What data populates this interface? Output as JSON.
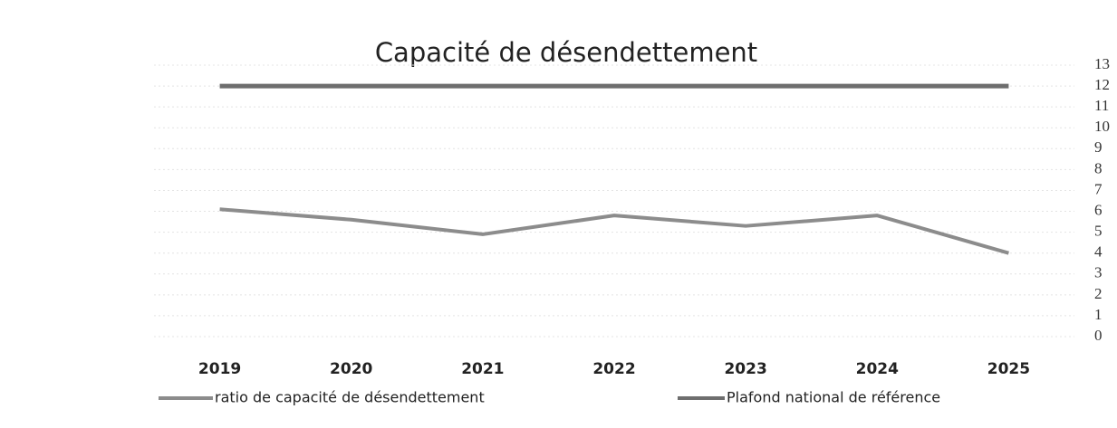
{
  "chart_data": {
    "type": "line",
    "title": "Capacité de désendettement",
    "categories": [
      "2019",
      "2020",
      "2021",
      "2022",
      "2023",
      "2024",
      "2025"
    ],
    "series": [
      {
        "name": "ratio de capacité de désendettement",
        "color": "#8c8c8c",
        "values": [
          6.1,
          5.6,
          4.9,
          5.8,
          5.3,
          5.8,
          4.0
        ]
      },
      {
        "name": "Plafond national de référence",
        "color": "#6e6e6e",
        "values": [
          12,
          12,
          12,
          12,
          12,
          12,
          12
        ]
      }
    ],
    "ylim": [
      0,
      13
    ],
    "yticks": [
      0,
      1,
      2,
      3,
      4,
      5,
      6,
      7,
      8,
      9,
      10,
      11,
      12,
      13
    ],
    "grid": true,
    "legend": "bottom"
  }
}
